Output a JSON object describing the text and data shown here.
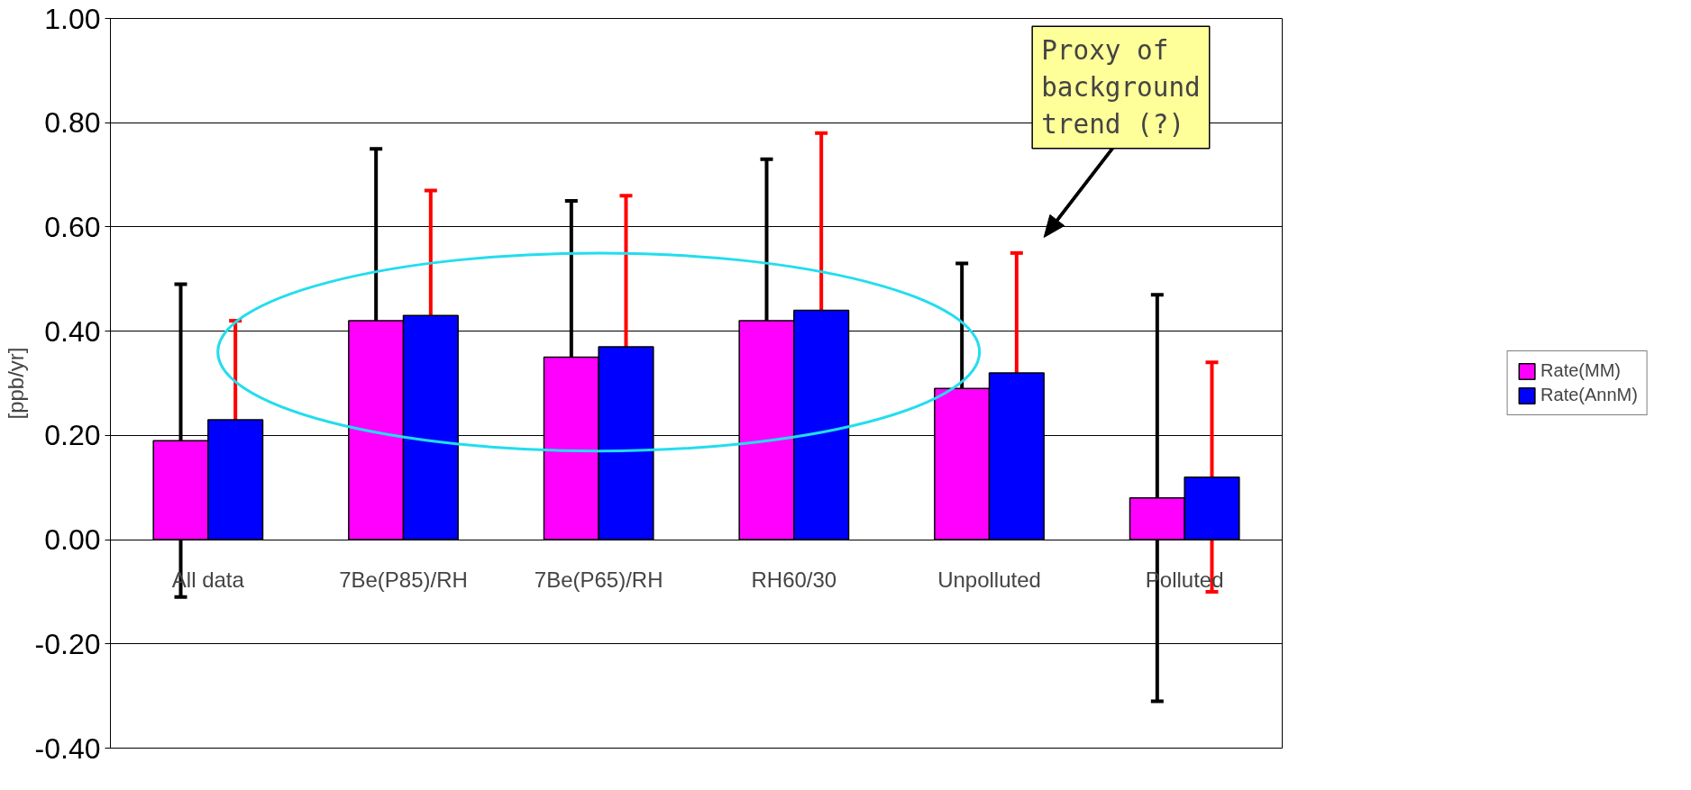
{
  "chart_data": {
    "type": "bar",
    "ylabel": "[ppb/yr]",
    "categories": [
      "All data",
      "7Be(P85)/RH",
      "7Be(P65)/RH",
      "RH60/30",
      "Unpolluted",
      "Polluted"
    ],
    "series": [
      {
        "name": "Rate(MM)",
        "color": "#ff00ff",
        "values": [
          0.19,
          0.42,
          0.35,
          0.42,
          0.29,
          0.08
        ],
        "errors": [
          0.3,
          0.33,
          0.3,
          0.31,
          0.24,
          0.39
        ]
      },
      {
        "name": "Rate(AnnM)",
        "color": "#0000ff",
        "values": [
          0.23,
          0.43,
          0.37,
          0.44,
          0.32,
          0.12
        ],
        "errors": [
          0.19,
          0.24,
          0.29,
          0.34,
          0.23,
          0.22
        ]
      }
    ],
    "ylim": [
      -0.4,
      1.0
    ],
    "yticks": [
      {
        "value": -0.4,
        "label": "-0.40"
      },
      {
        "value": -0.2,
        "label": "-0.20"
      },
      {
        "value": 0,
        "label": "0.00"
      },
      {
        "value": 0.2,
        "label": "0.20"
      },
      {
        "value": 0.4,
        "label": "0.40"
      },
      {
        "value": 0.6,
        "label": "0.60"
      },
      {
        "value": 0.8,
        "label": "0.80"
      },
      {
        "value": 1.0,
        "label": "1.00"
      }
    ],
    "grid": "y",
    "legend": "right",
    "annotations": [
      "Proxy of background trend (?)"
    ]
  }
}
